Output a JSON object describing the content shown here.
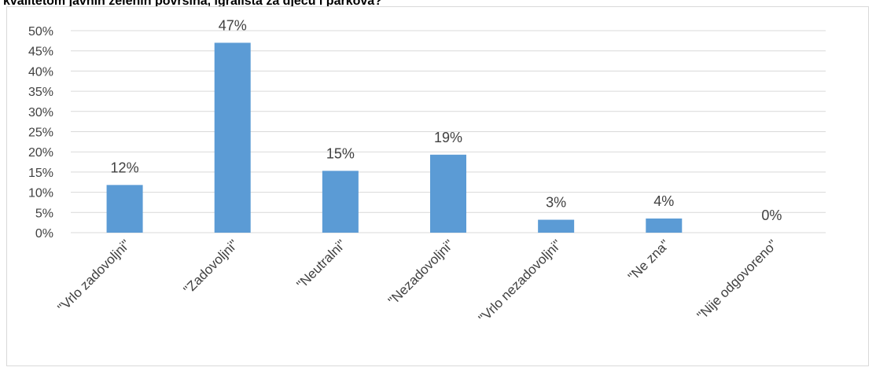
{
  "chart_data": {
    "type": "bar",
    "title": "kvalitetom javnih zelenih površina, igrališta za djecu i parkova?",
    "categories": [
      "\"Vrlo zadovoljni\"",
      "\"Zadovoljni\"",
      "\"Neutralni\"",
      "\"Nezadovoljni\"",
      "\"Vrlo nezadovoljni\"",
      "\"Ne zna\"",
      "\"Nije odgovoreno\""
    ],
    "values": [
      0.118,
      0.47,
      0.153,
      0.193,
      0.032,
      0.035,
      0.0
    ],
    "data_labels": [
      "12%",
      "47%",
      "15%",
      "19%",
      "3%",
      "4%",
      "0%"
    ],
    "y_ticks": [
      "0%",
      "5%",
      "10%",
      "15%",
      "20%",
      "25%",
      "30%",
      "35%",
      "40%",
      "45%",
      "50%"
    ],
    "ylim": [
      0,
      0.5
    ],
    "grid": true,
    "legend": "none",
    "bar_color": "#5b9bd5",
    "grid_color": "#d9d9d9",
    "text_color": "#404040"
  }
}
